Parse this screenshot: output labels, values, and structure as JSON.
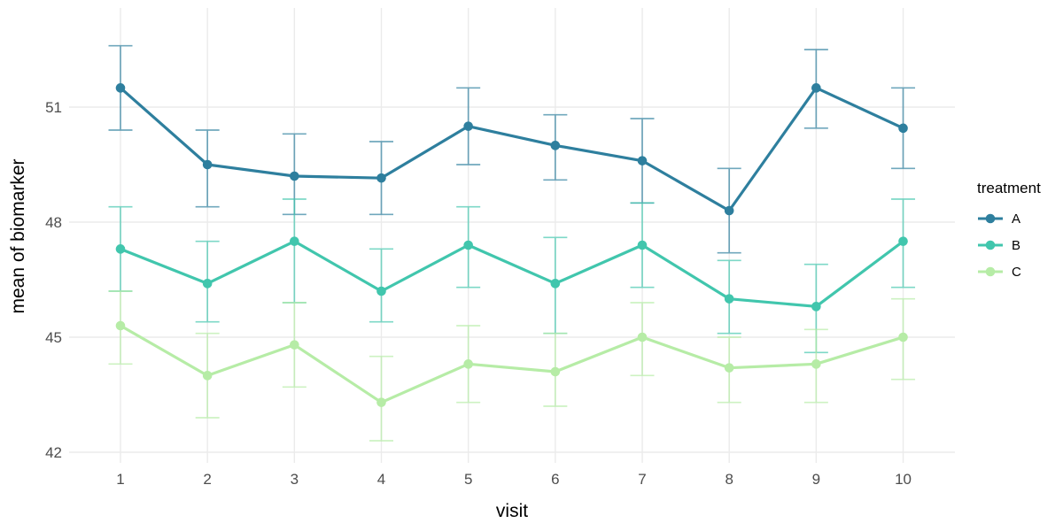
{
  "axes": {
    "x": {
      "label": "visit",
      "tick_labels": [
        "1",
        "2",
        "3",
        "4",
        "5",
        "6",
        "7",
        "8",
        "9",
        "10"
      ]
    },
    "y": {
      "label": "mean of biomarker",
      "tick_labels": [
        "42",
        "45",
        "48",
        "51"
      ],
      "tick_values": [
        42,
        45,
        48,
        51
      ]
    }
  },
  "legend": {
    "title": "treatment",
    "items": [
      {
        "label": "A",
        "color": "#2e7f9e"
      },
      {
        "label": "B",
        "color": "#41c6ad"
      },
      {
        "label": "C",
        "color": "#b6eca6"
      }
    ]
  },
  "colors": {
    "background": "#ffffff",
    "gridline": "#ebebeb",
    "tick_text": "#4d4d4d",
    "title_text": "#000000"
  },
  "chart_data": {
    "type": "line",
    "title": "",
    "xlabel": "visit",
    "ylabel": "mean of biomarker",
    "x": [
      1,
      2,
      3,
      4,
      5,
      6,
      7,
      8,
      9,
      10
    ],
    "xlim": [
      0.4,
      10.6
    ],
    "ylim": [
      41.7,
      53.4
    ],
    "grid": true,
    "legend_position": "right",
    "error_bars": true,
    "series": [
      {
        "name": "A",
        "color": "#2e7f9e",
        "values": [
          51.5,
          49.5,
          49.2,
          49.15,
          50.5,
          50.0,
          49.6,
          48.3,
          51.5,
          50.45
        ],
        "ymin": [
          50.4,
          48.4,
          48.2,
          48.2,
          49.5,
          49.1,
          48.5,
          47.2,
          50.45,
          49.4
        ],
        "ymax": [
          52.6,
          50.4,
          50.3,
          50.1,
          51.5,
          50.8,
          50.7,
          49.4,
          52.5,
          51.5
        ]
      },
      {
        "name": "B",
        "color": "#41c6ad",
        "values": [
          47.3,
          46.4,
          47.5,
          46.2,
          47.4,
          46.4,
          47.4,
          46.0,
          45.8,
          47.5
        ],
        "ymin": [
          46.2,
          45.4,
          45.9,
          45.4,
          46.3,
          45.1,
          46.3,
          45.1,
          44.6,
          46.3
        ],
        "ymax": [
          48.4,
          47.5,
          48.6,
          47.3,
          48.4,
          47.6,
          48.5,
          47.0,
          46.9,
          48.6
        ]
      },
      {
        "name": "C",
        "color": "#b6eca6",
        "values": [
          45.3,
          44.0,
          44.8,
          43.3,
          44.3,
          44.1,
          45.0,
          44.2,
          44.3,
          45.0
        ],
        "ymin": [
          44.3,
          42.9,
          43.7,
          42.3,
          43.3,
          43.2,
          44.0,
          43.3,
          43.3,
          43.9
        ],
        "ymax": [
          46.2,
          45.1,
          45.9,
          44.5,
          45.3,
          45.1,
          45.9,
          45.0,
          45.2,
          46.0
        ]
      }
    ]
  }
}
